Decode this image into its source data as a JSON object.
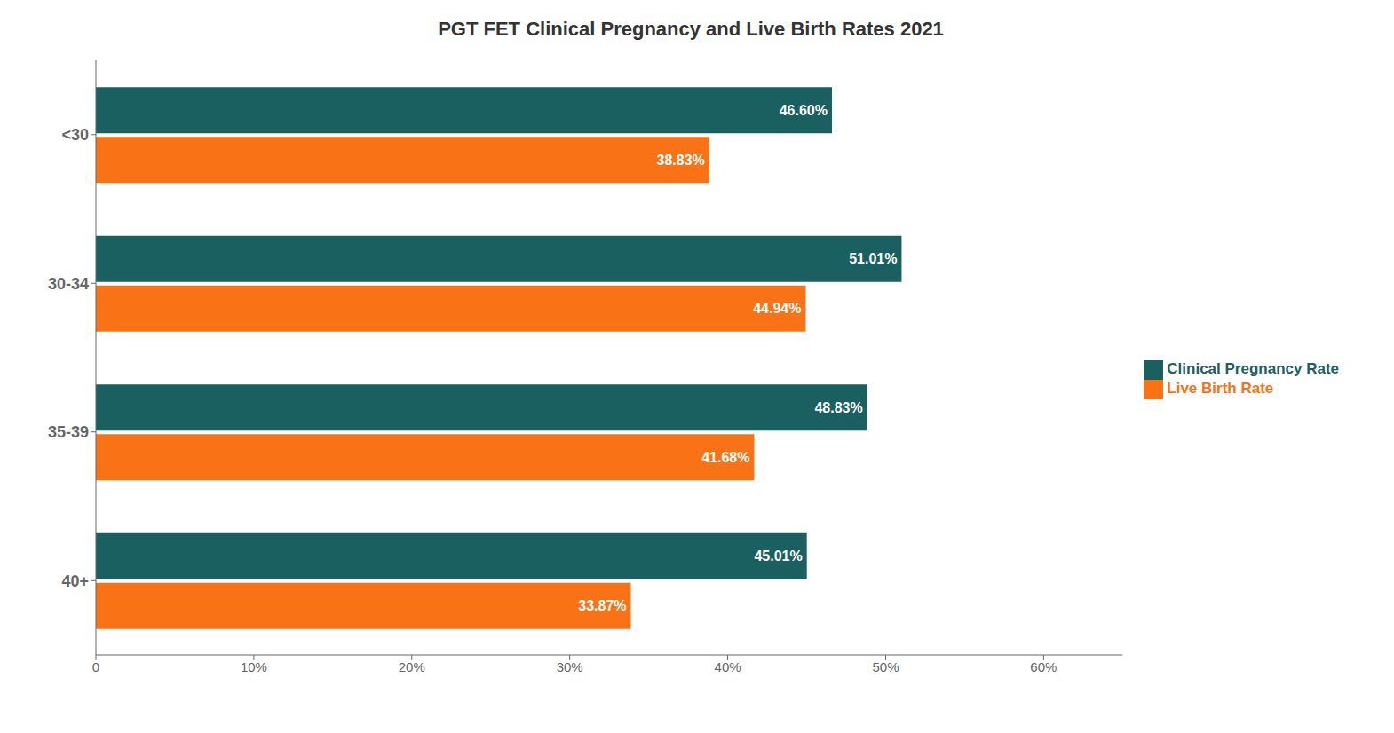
{
  "chart_data": {
    "type": "bar",
    "orientation": "horizontal",
    "title": "PGT FET Clinical Pregnancy and Live Birth Rates 2021",
    "categories": [
      "40+",
      "35-39",
      "30-34",
      "<30"
    ],
    "series": [
      {
        "name": "Clinical Pregnancy Rate",
        "color": "#1a6060",
        "values": [
          45.01,
          48.83,
          51.01,
          46.6
        ],
        "value_labels": [
          "45.01%",
          "48.83%",
          "51.01%",
          "46.60%"
        ]
      },
      {
        "name": "Live Birth Rate",
        "color": "#f97316",
        "values": [
          33.87,
          41.68,
          44.94,
          38.83
        ],
        "value_labels": [
          "33.87%",
          "41.68%",
          "44.94%",
          "38.83%"
        ]
      }
    ],
    "xlim": [
      0,
      65
    ],
    "xticks": [
      0,
      {
        "value": 10,
        "label": "10%"
      },
      {
        "value": 20,
        "label": "20%"
      },
      {
        "value": 30,
        "label": "30%"
      },
      {
        "value": 40,
        "label": "40%"
      },
      {
        "value": 50,
        "label": "50%"
      },
      {
        "value": 60,
        "label": "60%"
      }
    ],
    "data_labels": true,
    "grid": false,
    "legend": "right"
  }
}
